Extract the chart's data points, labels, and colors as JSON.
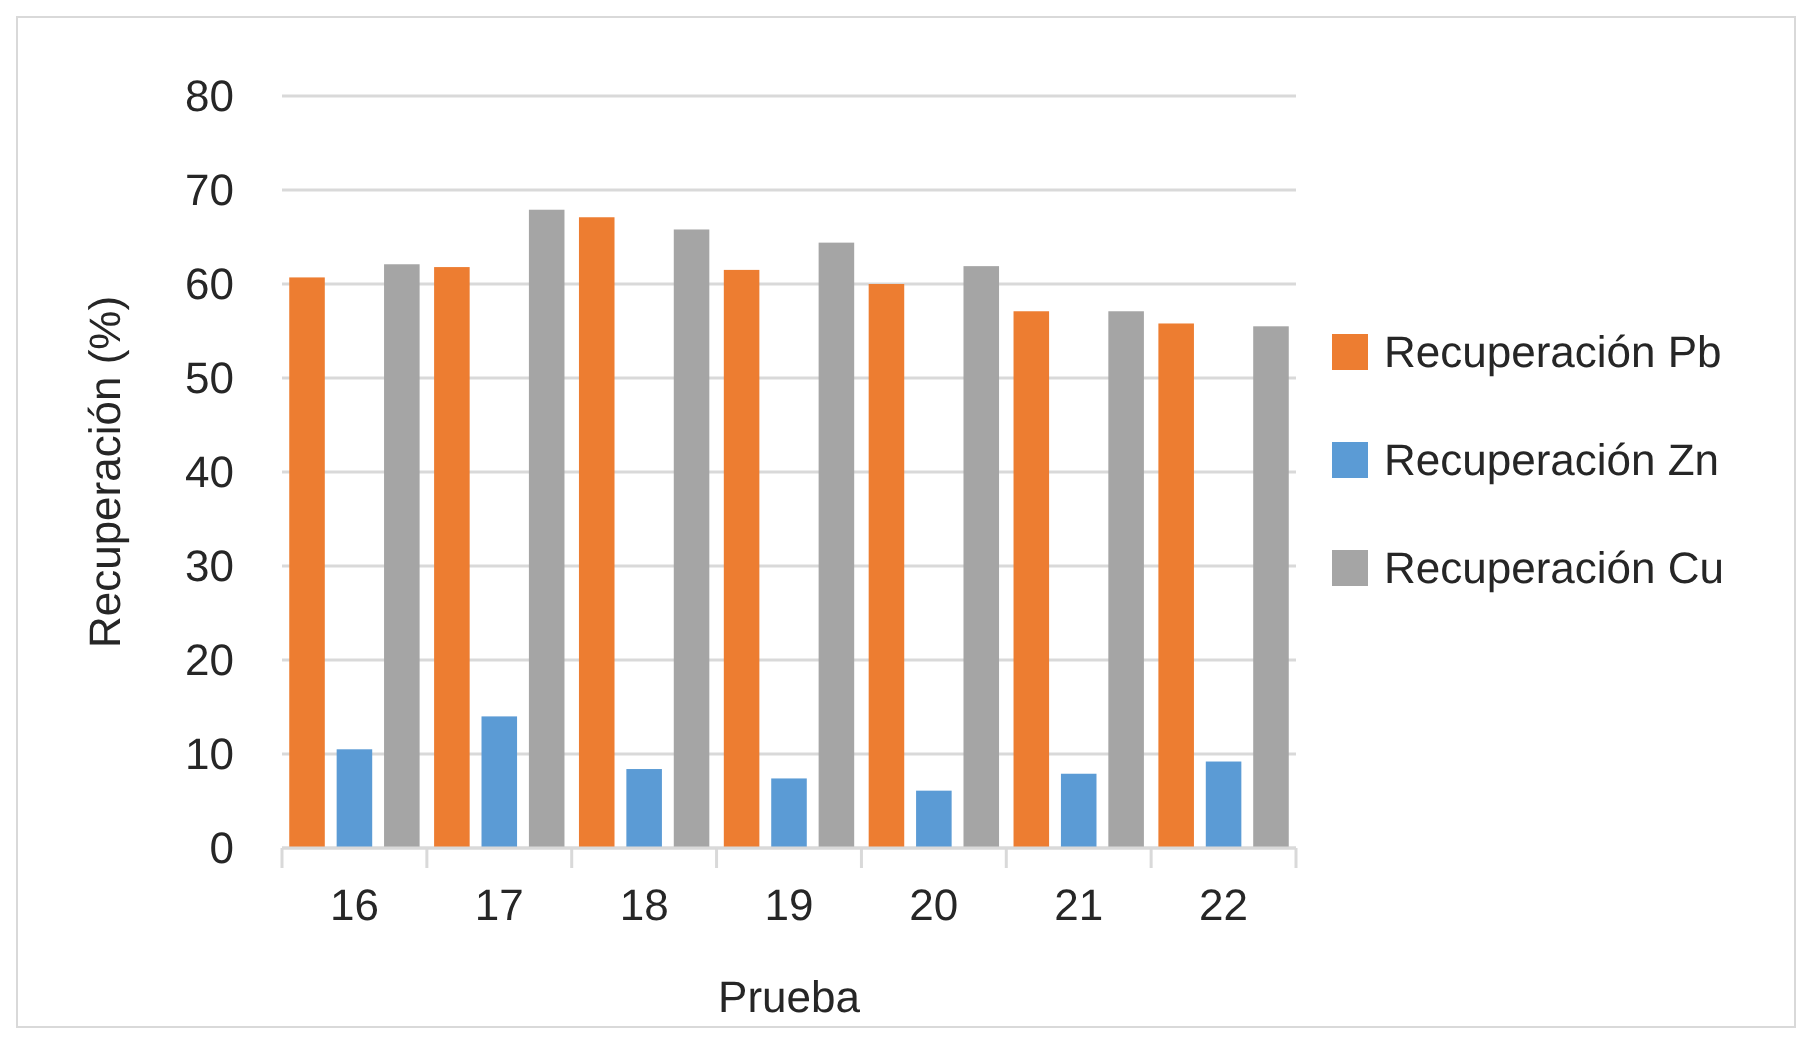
{
  "chart_data": {
    "type": "bar",
    "xlabel": "Prueba",
    "ylabel": "Recuperación (%)",
    "categories": [
      "16",
      "17",
      "18",
      "19",
      "20",
      "21",
      "22"
    ],
    "series": [
      {
        "name": "Recuperación Pb",
        "color": "#ed7d31",
        "values": [
          60.7,
          61.8,
          67.1,
          61.5,
          60.0,
          57.1,
          55.8
        ]
      },
      {
        "name": "Recuperación Zn",
        "color": "#5b9bd5",
        "values": [
          10.5,
          14.0,
          8.4,
          7.4,
          6.1,
          7.9,
          9.2
        ]
      },
      {
        "name": "Recuperación Cu",
        "color": "#a5a5a5",
        "values": [
          62.1,
          67.9,
          65.8,
          64.4,
          61.9,
          57.1,
          55.5
        ]
      }
    ],
    "ylim": [
      0,
      80
    ],
    "yticks": [
      0,
      10,
      20,
      30,
      40,
      50,
      60,
      70,
      80
    ],
    "grid": "y",
    "legend": "right"
  }
}
